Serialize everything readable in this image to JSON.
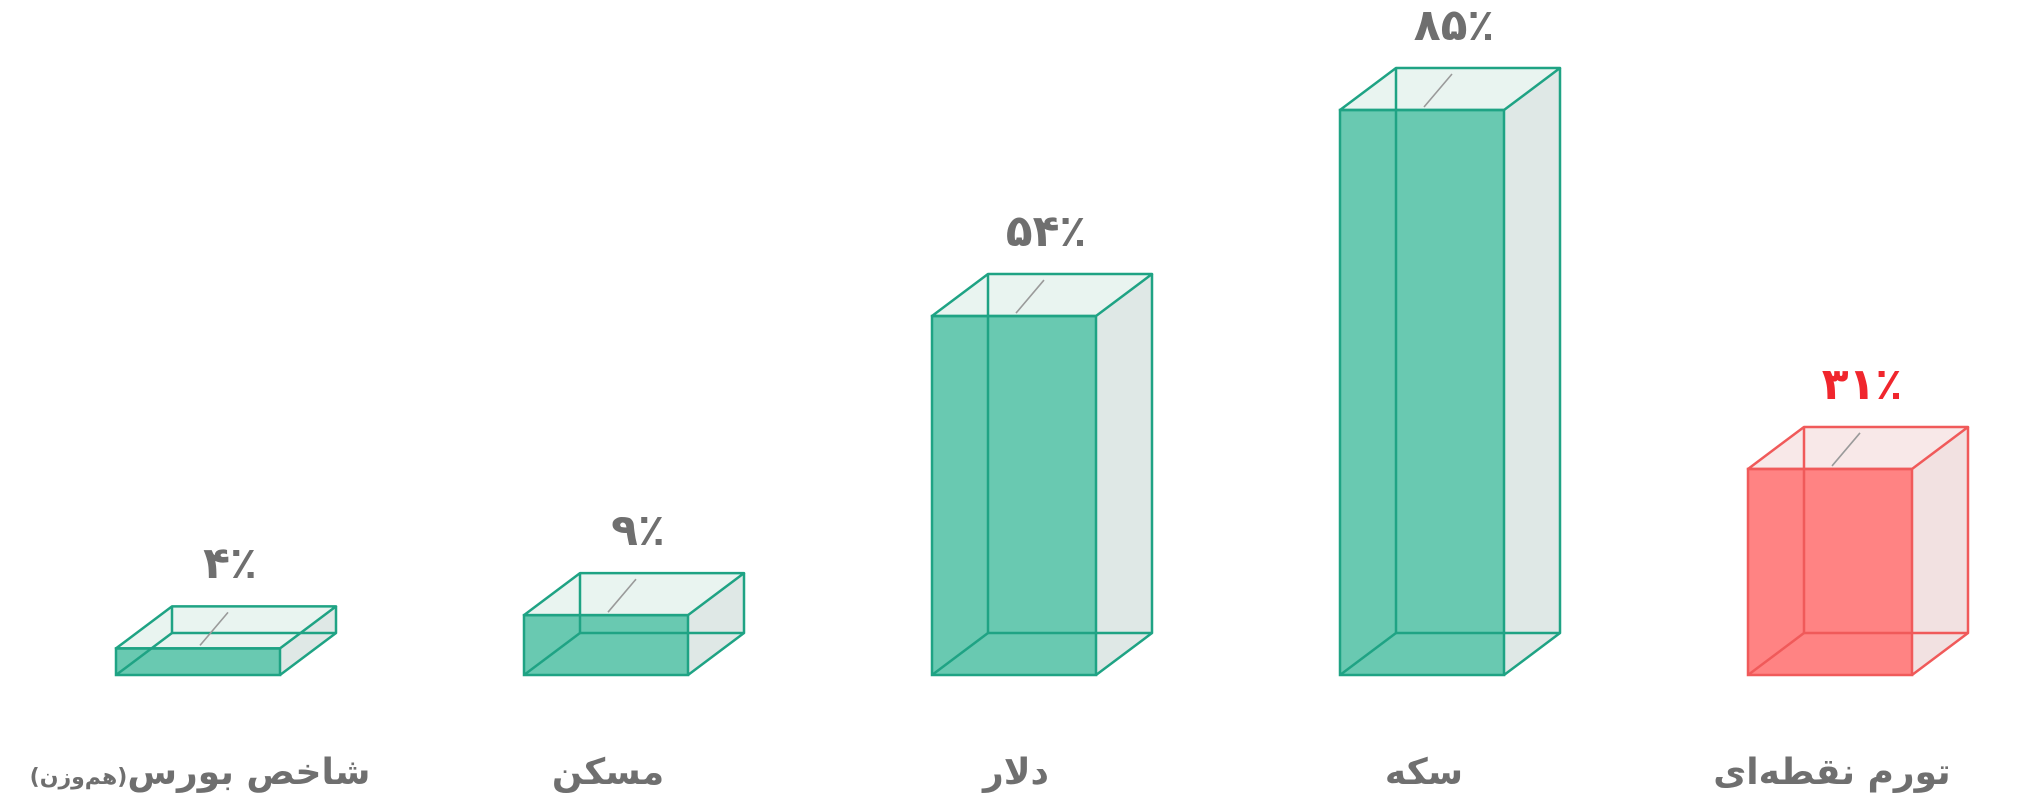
{
  "chart_data": {
    "type": "bar",
    "categories": [
      "شاخص بورس",
      "مسکن",
      "دلار",
      "سکه",
      "تورم نقطه‌ای"
    ],
    "category_suffix": [
      "(هم‌وزن)",
      "",
      "",
      "",
      ""
    ],
    "values": [
      4,
      9,
      54,
      85,
      31
    ],
    "value_labels": [
      "۴٪",
      "۹٪",
      "۵۴٪",
      "۸۵٪",
      "۳۱٪"
    ],
    "highlight_index": 4,
    "ylim": [
      0,
      85
    ],
    "grid": false,
    "legend": "none",
    "title": "",
    "xlabel": "",
    "ylabel": ""
  },
  "colors": {
    "bar_fill": "#69c9b1",
    "bar_stroke": "#1fa384",
    "bar_top": "#e9f4f0",
    "bar_side": "#dfe8e6",
    "highlight_fill": "#ff8383",
    "highlight_stroke": "#f05a5a",
    "highlight_top": "#f8e8e8",
    "highlight_side": "#f2e1e1",
    "label_text": "#6f6f6f",
    "highlight_text": "#f0262d",
    "inner_line": "#9a9a9a"
  }
}
